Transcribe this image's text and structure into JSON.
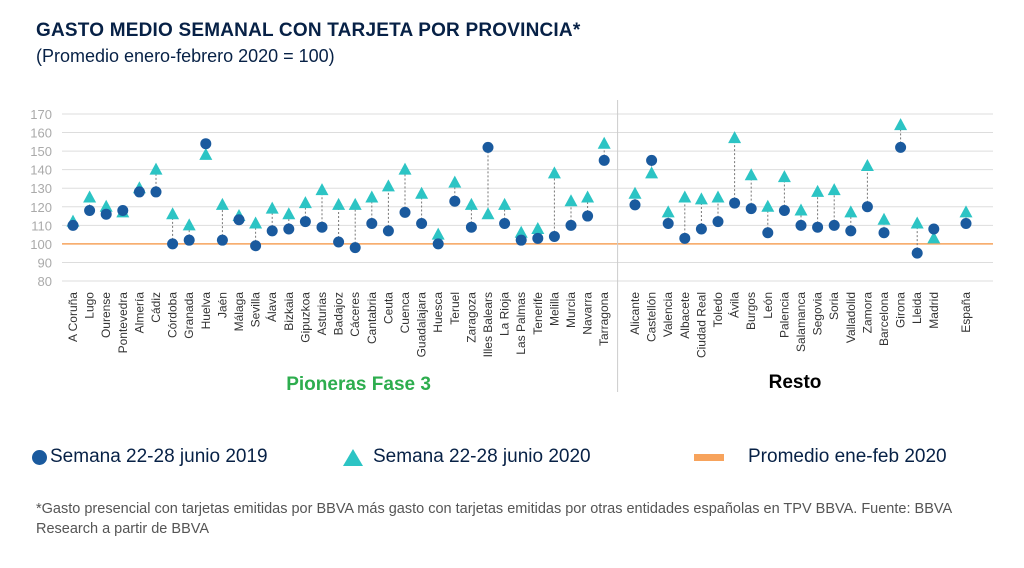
{
  "header": {
    "title": "GASTO MEDIO SEMANAL CON TARJETA POR PROVINCIA*",
    "subtitle": "(Promedio enero-febrero 2020 = 100)"
  },
  "colors": {
    "series_2019": "#1a5a9e",
    "series_2020": "#2cc4c4",
    "reference": "#f7a35c",
    "group_pioneras": "#2dad4e",
    "group_resto": "#000000",
    "grid": "#dddddd",
    "tick_text": "#aaaaaa"
  },
  "groups": {
    "pioneras_label": "Pioneras Fase 3",
    "resto_label": "Resto"
  },
  "legend": {
    "series_2019": "Semana 22-28 junio 2019",
    "series_2020": "Semana 22-28 junio 2020",
    "reference": "Promedio ene-feb 2020"
  },
  "footnote": "*Gasto presencial con tarjetas emitidas por BBVA más gasto con tarjetas emitidas por otras entidades españolas en TPV BBVA. Fuente: BBVA Research a partir de BBVA",
  "chart_data": {
    "type": "scatter",
    "ylim": [
      80,
      170
    ],
    "yticks": [
      80,
      90,
      100,
      110,
      120,
      130,
      140,
      150,
      160,
      170
    ],
    "reference_value": 100,
    "grid": true,
    "legend_position": "bottom",
    "categories": [
      "A Coruña",
      "Lugo",
      "Ourense",
      "Pontevedra",
      "Almería",
      "Cádiz",
      "Córdoba",
      "Granada",
      "Huelva",
      "Jaén",
      "Málaga",
      "Sevilla",
      "Álava",
      "Bizkaia",
      "Gipuzkoa",
      "Asturias",
      "Badajoz",
      "Cáceres",
      "Cantabria",
      "Ceuta",
      "Cuenca",
      "Guadalajara",
      "Huesca",
      "Teruel",
      "Zaragoza",
      "Illes Balears",
      "La Rioja",
      "Las Palmas",
      "Tenerife",
      "Melilla",
      "Murcia",
      "Navarra",
      "Tarragona",
      "Alicante",
      "Castellón",
      "Valencia",
      "Albacete",
      "Ciudad Real",
      "Toledo",
      "Ávila",
      "Burgos",
      "León",
      "Palencia",
      "Salamanca",
      "Segovia",
      "Soria",
      "Valladolid",
      "Zamora",
      "Barcelona",
      "Girona",
      "Lleida",
      "Madrid",
      "España"
    ],
    "group_of_category": [
      "Pioneras Fase 3",
      "Pioneras Fase 3",
      "Pioneras Fase 3",
      "Pioneras Fase 3",
      "Pioneras Fase 3",
      "Pioneras Fase 3",
      "Pioneras Fase 3",
      "Pioneras Fase 3",
      "Pioneras Fase 3",
      "Pioneras Fase 3",
      "Pioneras Fase 3",
      "Pioneras Fase 3",
      "Pioneras Fase 3",
      "Pioneras Fase 3",
      "Pioneras Fase 3",
      "Pioneras Fase 3",
      "Pioneras Fase 3",
      "Pioneras Fase 3",
      "Pioneras Fase 3",
      "Pioneras Fase 3",
      "Pioneras Fase 3",
      "Pioneras Fase 3",
      "Pioneras Fase 3",
      "Pioneras Fase 3",
      "Pioneras Fase 3",
      "Pioneras Fase 3",
      "Pioneras Fase 3",
      "Pioneras Fase 3",
      "Pioneras Fase 3",
      "Pioneras Fase 3",
      "Pioneras Fase 3",
      "Pioneras Fase 3",
      "Pioneras Fase 3",
      "Resto",
      "Resto",
      "Resto",
      "Resto",
      "Resto",
      "Resto",
      "Resto",
      "Resto",
      "Resto",
      "Resto",
      "Resto",
      "Resto",
      "Resto",
      "Resto",
      "Resto",
      "Resto",
      "Resto",
      "Resto",
      "Resto",
      "Resto"
    ],
    "series": [
      {
        "name": "Semana 22-28 junio 2019",
        "marker": "circle",
        "values": [
          110,
          118,
          116,
          118,
          128,
          128,
          100,
          102,
          154,
          102,
          113,
          99,
          107,
          108,
          112,
          109,
          101,
          98,
          111,
          107,
          117,
          111,
          100,
          123,
          109,
          152,
          111,
          102,
          103,
          104,
          110,
          115,
          145,
          121,
          145,
          111,
          103,
          108,
          112,
          122,
          119,
          106,
          118,
          110,
          109,
          110,
          107,
          120,
          106,
          152,
          95,
          108,
          111
        ]
      },
      {
        "name": "Semana 22-28 junio 2020",
        "marker": "triangle",
        "values": [
          112,
          125,
          120,
          117,
          130,
          140,
          116,
          110,
          148,
          121,
          115,
          111,
          119,
          116,
          122,
          129,
          121,
          121,
          125,
          131,
          140,
          127,
          105,
          133,
          121,
          116,
          121,
          106,
          108,
          138,
          123,
          125,
          154,
          127,
          138,
          117,
          125,
          124,
          125,
          157,
          137,
          120,
          136,
          118,
          128,
          129,
          117,
          142,
          113,
          164,
          111,
          103,
          117
        ]
      }
    ]
  }
}
